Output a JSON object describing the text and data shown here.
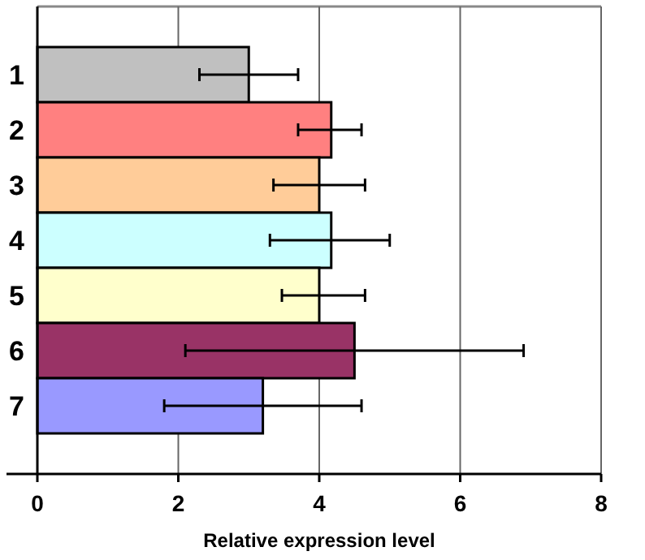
{
  "chart_data": {
    "type": "bar",
    "orientation": "horizontal",
    "xlabel": "Relative expression level",
    "categories": [
      "1",
      "2",
      "3",
      "4",
      "5",
      "6",
      "7"
    ],
    "values": [
      3.0,
      4.17,
      4.0,
      4.17,
      4.0,
      4.5,
      3.2
    ],
    "errors": [
      [
        2.3,
        3.7
      ],
      [
        3.7,
        4.6
      ],
      [
        3.35,
        4.65
      ],
      [
        3.3,
        5.0
      ],
      [
        3.47,
        4.65
      ],
      [
        2.1,
        6.9
      ],
      [
        1.8,
        4.6
      ]
    ],
    "colors": [
      "#c0c0c0",
      "#ff8080",
      "#ffcc99",
      "#ccffff",
      "#ffffcc",
      "#993366",
      "#9999ff"
    ],
    "xlim": [
      0,
      8
    ],
    "xticks": [
      0,
      2,
      4,
      6,
      8
    ],
    "grid": "x"
  }
}
